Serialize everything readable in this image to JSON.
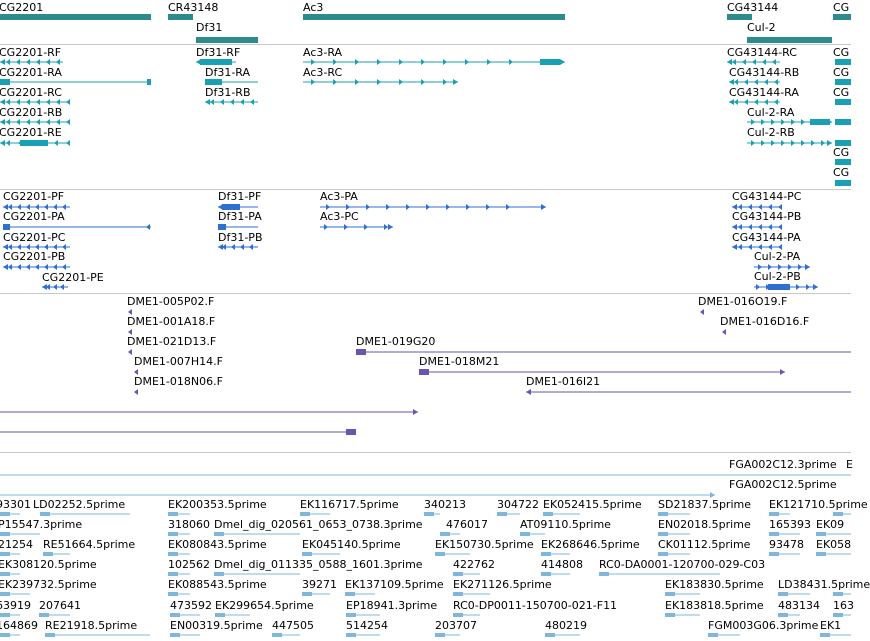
{
  "colors": {
    "gene": "#2e8b8b",
    "rna": "#1aa0b4",
    "protein": "#2e6fd0",
    "clone": "#6a55b0",
    "est": "#7fb7dc",
    "separator": "#c8c8c8"
  },
  "tracks": {
    "gene_span": {
      "labels": [
        "CG2201",
        "CR43148",
        "Df31",
        "Ac3",
        "CG43144",
        "Cul-2",
        "CG"
      ]
    },
    "transcripts": {
      "labels": [
        "CG2201-RF",
        "CG2201-RA",
        "CG2201-RC",
        "CG2201-RB",
        "CG2201-RE",
        "Df31-RF",
        "Df31-RA",
        "Df31-RB",
        "Ac3-RA",
        "Ac3-RC",
        "CG43144-RC",
        "CG43144-RB",
        "CG43144-RA",
        "Cul-2-RA",
        "Cul-2-RB",
        "CG",
        "CG",
        "CG",
        "CG",
        "CG"
      ]
    },
    "proteins": {
      "labels": [
        "CG2201-PF",
        "CG2201-PA",
        "CG2201-PC",
        "CG2201-PB",
        "CG2201-PE",
        "Df31-PF",
        "Df31-PA",
        "Df31-PB",
        "Ac3-PA",
        "Ac3-PC",
        "CG43144-PC",
        "CG43144-PB",
        "CG43144-PA",
        "Cul-2-PA",
        "Cul-2-PB"
      ]
    },
    "clones": {
      "labels": [
        "DME1-005P02.F",
        "DME1-001A18.F",
        "DME1-021D13.F",
        "DME1-007H14.F",
        "DME1-018N06.F",
        "DME1-019G20",
        "DME1-018M21",
        "DME1-016I21",
        "DME1-016O19.F",
        "DME1-016D16.F"
      ]
    },
    "ests": {
      "labels": [
        "FGA002C12.3prime",
        "E",
        "FGA002C12.5prime",
        "93301",
        "LD02252.5prime",
        "EK200353.5prime",
        "EK116717.5prime",
        "340213",
        "304722",
        "EK052415.5prime",
        "SD21837.5prime",
        "EK121710.5prime",
        "P15547.3prime",
        "318060",
        "Dmel_dig_020561_0653_0738.3prime",
        "476017",
        "AT09110.5prime",
        "EN02018.5prime",
        "165393",
        "EK09",
        "21254",
        "RE51664.5prime",
        "EK080843.5prime",
        "EK045140.5prime",
        "EK150730.5prime",
        "EK268646.5prime",
        "CK01112.5prime",
        "93478",
        "EK058",
        "102562",
        "Dmel_dig_011335_0588_1601.3prime",
        "422762",
        "414808",
        "RC0-DA0001-120700-029-C03",
        "EK308120.5prime",
        "EK239732.5prime",
        "EK088543.5prime",
        "39271",
        "EK137109.5prime",
        "EK271126.5prime",
        "EK183830.5prime",
        "LD38431.5prime",
        "63919",
        "207641",
        "473592",
        "EK299654.5prime",
        "EP18941.3prime",
        "RC0-DP0011-150700-021-F11",
        "EK183818.5prime",
        "483134",
        "163",
        "164869",
        "RE21918.5prime",
        "EN00319.5prime",
        "447505",
        "514254",
        "203707",
        "480219",
        "FGM003G06.3prime",
        "EK1"
      ]
    }
  }
}
